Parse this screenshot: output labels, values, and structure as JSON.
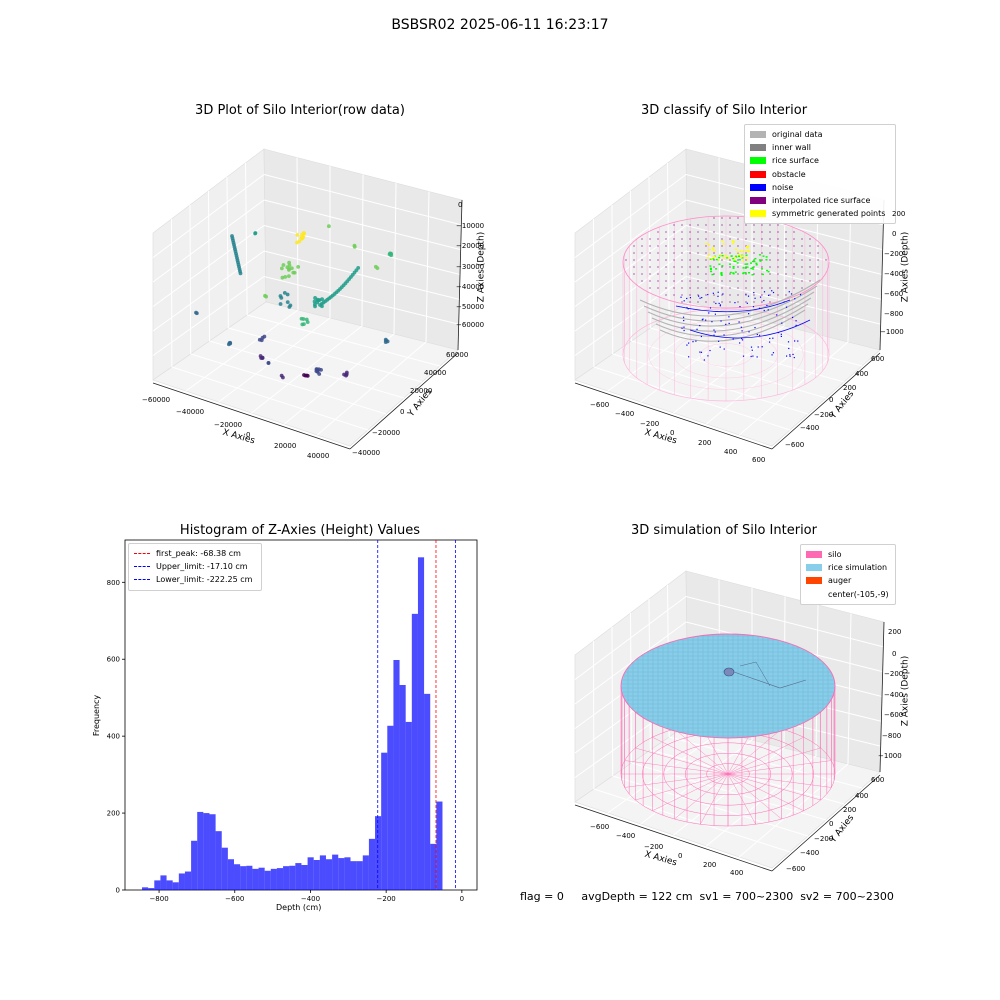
{
  "suptitle": "BSBSR02 2025-06-11 16:23:17",
  "footer": "flag = 0     avgDepth = 122 cm  sv1 = 700~2300  sv2 = 700~2300",
  "chart_data": [
    {
      "type": "scatter",
      "title": "3D Plot of Silo Interior(row data)",
      "xlabel": "X Axies",
      "ylabel": "Y Axies",
      "zlabel": "Z Axies (Depth)",
      "x_ticks": [
        "−60000",
        "−40000",
        "−20000",
        "0",
        "20000",
        "40000"
      ],
      "y_ticks": [
        "−40000",
        "−20000",
        "0",
        "20000",
        "40000",
        "60000"
      ],
      "z_ticks": [
        "0",
        "−10000",
        "−20000",
        "−30000",
        "−40000",
        "−50000",
        "−60000"
      ],
      "xlim": [
        -60000,
        50000
      ],
      "ylim": [
        -40000,
        60000
      ],
      "zlim": [
        -65000,
        0
      ],
      "colormap": "viridis"
    },
    {
      "type": "scatter",
      "title": "3D classify of Silo Interior",
      "xlabel": "X Axies",
      "ylabel": "Y Axies",
      "zlabel": "Z Axies (Depth)",
      "x_ticks": [
        "−600",
        "−400",
        "−200",
        "0",
        "200",
        "400",
        "600"
      ],
      "y_ticks": [
        "−600",
        "−400",
        "−200",
        "0",
        "200",
        "400",
        "600"
      ],
      "z_ticks": [
        "200",
        "0",
        "−200",
        "−400",
        "−600",
        "−800",
        "−1000"
      ],
      "legend_position": "upper right",
      "legend": [
        {
          "label": "original data",
          "color": "#b3b3b3"
        },
        {
          "label": "inner wall",
          "color": "#808080"
        },
        {
          "label": "rice surface",
          "color": "#00ff00"
        },
        {
          "label": "obstacle",
          "color": "#ff0000"
        },
        {
          "label": "noise",
          "color": "#0000ff"
        },
        {
          "label": "interpolated rice surface",
          "color": "#800080"
        },
        {
          "label": "symmetric generated points",
          "color": "#ffff00"
        }
      ]
    },
    {
      "type": "bar",
      "title": "Histogram of Z-Axies (Height) Values",
      "xlabel": "Depth (cm)",
      "ylabel": "Frequency",
      "xlim": [
        -890,
        40
      ],
      "ylim": [
        0,
        910
      ],
      "x_ticks": [
        -800,
        -600,
        -400,
        -200,
        0
      ],
      "y_ticks": [
        0,
        200,
        400,
        600,
        800
      ],
      "bar_color": "#0000ff",
      "bin_start": -845,
      "bin_width": 16.2,
      "values": [
        7,
        5,
        25,
        38,
        25,
        20,
        43,
        48,
        128,
        203,
        200,
        197,
        153,
        110,
        80,
        67,
        62,
        63,
        55,
        58,
        50,
        55,
        57,
        62,
        63,
        70,
        65,
        85,
        78,
        90,
        80,
        92,
        83,
        85,
        75,
        75,
        90,
        133,
        192,
        357,
        427,
        598,
        533,
        437,
        718,
        865,
        510,
        120,
        230
      ],
      "vlines": [
        {
          "label": "first_peak: -68.38 cm",
          "x": -68.38,
          "color": "#ff0000"
        },
        {
          "label": "Upper_limit: -17.10 cm",
          "x": -17.1,
          "color": "#0000ff"
        },
        {
          "label": "Lower_limit: -222.25 cm",
          "x": -222.25,
          "color": "#0000ff"
        }
      ],
      "legend_position": "upper left"
    },
    {
      "type": "scatter",
      "title": "3D simulation of Silo Interior",
      "xlabel": "X Axies",
      "ylabel": "Y Axies",
      "zlabel": "Z Axies (Depth)",
      "x_ticks": [
        "−600",
        "−400",
        "−200",
        "0",
        "200",
        "400"
      ],
      "y_ticks": [
        "−600",
        "−400",
        "−200",
        "0",
        "200",
        "400",
        "600"
      ],
      "z_ticks": [
        "200",
        "0",
        "−200",
        "−400",
        "−600",
        "−800",
        "−1000"
      ],
      "legend_position": "upper right",
      "legend": [
        {
          "label": "silo",
          "color": "#ff69b4"
        },
        {
          "label": "rice simulation",
          "color": "#87ceeb"
        },
        {
          "label": "auger",
          "color": "#ff4500"
        },
        {
          "label": "center(-105,-9)",
          "color": "transparent"
        }
      ]
    }
  ]
}
